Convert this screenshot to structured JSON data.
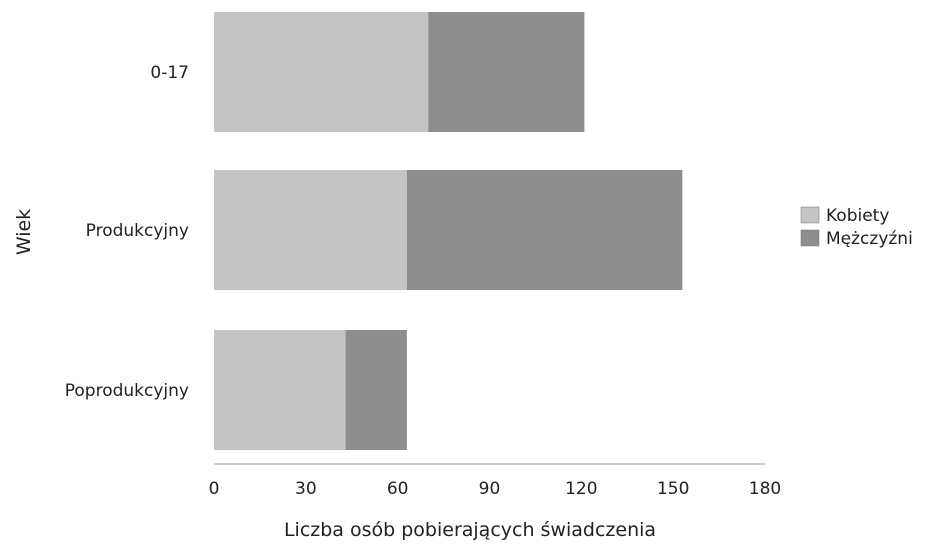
{
  "chart_data": {
    "type": "bar",
    "orientation": "horizontal",
    "stacked": true,
    "categories": [
      "0-17",
      "Produkcyjny",
      "Poprodukcyjny"
    ],
    "series": [
      {
        "name": "Kobiety",
        "values": [
          70,
          63,
          43
        ],
        "color": "#c4c4c4"
      },
      {
        "name": "Mężczyźni",
        "values": [
          51,
          90,
          20
        ],
        "color": "#8e8e8e"
      }
    ],
    "xlabel": "Liczba osób pobierających świadczenia",
    "ylabel": "Wiek",
    "xlim": [
      0,
      180
    ],
    "xticks": [
      "0",
      "30",
      "60",
      "90",
      "120",
      "150",
      "180"
    ],
    "grid": false,
    "legend_position": "right"
  }
}
